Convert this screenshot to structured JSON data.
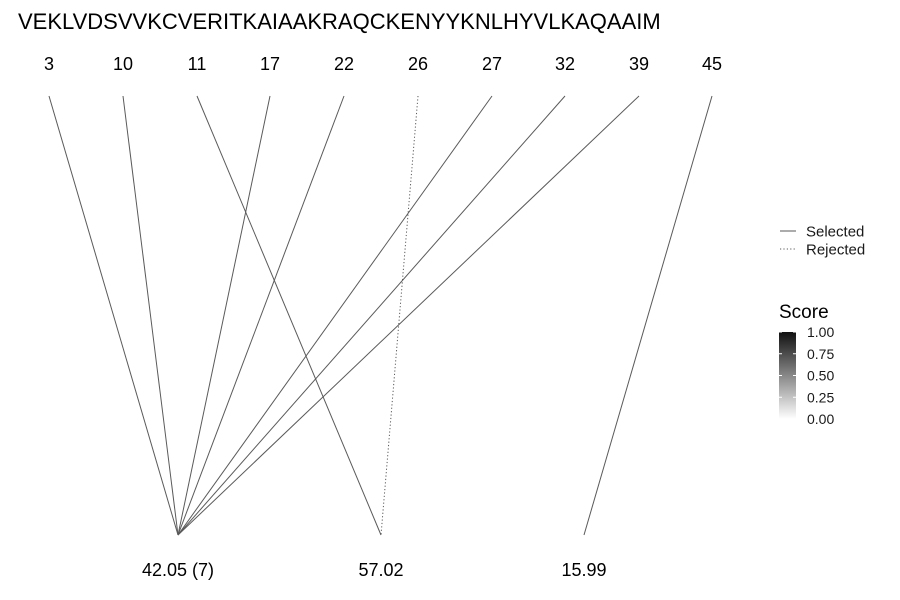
{
  "sequence": "VEKLVDSVVKCVERITKAIAAKRAQCKENYYKNLHYVLKAQAAIM",
  "positions": [
    "3",
    "10",
    "11",
    "17",
    "22",
    "26",
    "27",
    "32",
    "39",
    "45"
  ],
  "masses": [
    "42.05 (7)",
    "57.02",
    "15.99"
  ],
  "links": [
    {
      "from": 0,
      "to": 0,
      "status": "Selected"
    },
    {
      "from": 1,
      "to": 0,
      "status": "Selected"
    },
    {
      "from": 2,
      "to": 1,
      "status": "Selected"
    },
    {
      "from": 3,
      "to": 0,
      "status": "Selected"
    },
    {
      "from": 4,
      "to": 0,
      "status": "Selected"
    },
    {
      "from": 5,
      "to": 1,
      "status": "Rejected"
    },
    {
      "from": 6,
      "to": 0,
      "status": "Selected"
    },
    {
      "from": 7,
      "to": 0,
      "status": "Selected"
    },
    {
      "from": 8,
      "to": 0,
      "status": "Selected"
    },
    {
      "from": 9,
      "to": 2,
      "status": "Selected"
    }
  ],
  "legend": {
    "linetype": {
      "selected_label": "Selected",
      "rejected_label": "Rejected"
    },
    "score": {
      "title": "Score",
      "ticks": [
        "1.00",
        "0.75",
        "0.50",
        "0.25",
        "0.00"
      ],
      "gradient_high": "#111111",
      "gradient_low": "#ffffff"
    }
  },
  "colors": {
    "line": "#5a5a5a"
  }
}
